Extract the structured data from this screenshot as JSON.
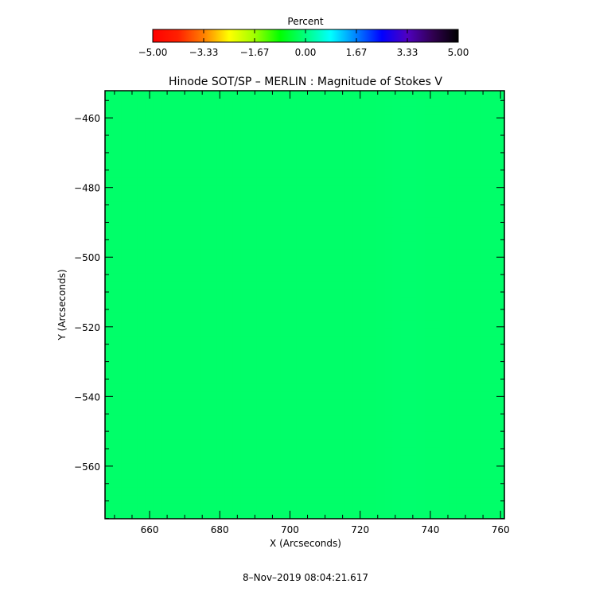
{
  "chart_data": {
    "type": "heatmap",
    "title": "Hinode SOT/SP – MERLIN : Magnitude of Stokes V",
    "xlabel": "X (Arcseconds)",
    "ylabel": "Y (Arcseconds)",
    "xlim": [
      647.3,
      761.1
    ],
    "ylim": [
      -575.1,
      -452.2
    ],
    "xticks": [
      "660",
      "680",
      "700",
      "720",
      "740",
      "760"
    ],
    "xtick_values": [
      660,
      680,
      700,
      720,
      740,
      760
    ],
    "yticks": [
      "−460",
      "−480",
      "−500",
      "−520",
      "−540",
      "−560"
    ],
    "ytick_values": [
      -460,
      -480,
      -500,
      -520,
      -540,
      -560
    ],
    "colorbar": {
      "label": "Percent",
      "range": [
        -5,
        5
      ],
      "ticks": [
        "−5.00",
        "−3.33",
        "−1.67",
        "0.00",
        "1.67",
        "3.33",
        "5.00"
      ],
      "colormap": [
        [
          -5,
          "#ff0000"
        ],
        [
          -4.17,
          "#ff2000"
        ],
        [
          -3.33,
          "#ff8000"
        ],
        [
          -2.5,
          "#ffff00"
        ],
        [
          -1.67,
          "#a0ff00"
        ],
        [
          -0.83,
          "#00ff00"
        ],
        [
          0,
          "#00ff80"
        ],
        [
          0.83,
          "#00ffff"
        ],
        [
          1.67,
          "#0080ff"
        ],
        [
          2.5,
          "#0000ff"
        ],
        [
          3.33,
          "#5000c0"
        ],
        [
          4.17,
          "#300050"
        ],
        [
          5,
          "#000000"
        ]
      ]
    },
    "grid_x": [
      650,
      662,
      674,
      686,
      698,
      710,
      722,
      734,
      746,
      758
    ],
    "grid_y": [
      -455,
      -466,
      -477,
      -488,
      -499,
      -510,
      -521,
      -532,
      -543,
      -554,
      -565,
      -574
    ],
    "values": [
      [
        -0.15,
        -0.15,
        -0.15,
        -0.15,
        -0.15,
        -0.15,
        -0.15,
        -0.12,
        -0.15,
        -0.15
      ],
      [
        -0.15,
        -0.18,
        -0.15,
        -0.15,
        -0.15,
        -0.2,
        -0.15,
        -0.15,
        -0.15,
        -0.15
      ],
      [
        -0.18,
        -0.15,
        -0.15,
        -0.12,
        -0.15,
        -0.15,
        -0.15,
        -0.15,
        -0.15,
        -0.15
      ],
      [
        -0.15,
        -0.3,
        -0.15,
        -0.1,
        -0.15,
        -0.15,
        -0.15,
        -0.15,
        -0.18,
        -0.15
      ],
      [
        -0.15,
        -0.15,
        -0.15,
        -0.05,
        -0.15,
        -0.15,
        -0.15,
        -0.15,
        -0.15,
        -0.2
      ],
      [
        -0.15,
        -0.15,
        -0.1,
        0.1,
        -0.1,
        -0.3,
        -0.15,
        -0.15,
        -0.25,
        -0.15
      ],
      [
        -0.15,
        -0.15,
        -0.1,
        0.2,
        -0.35,
        -0.3,
        -0.15,
        -0.15,
        -0.15,
        -0.15
      ],
      [
        -0.15,
        -0.15,
        -0.1,
        0.0,
        -0.4,
        -0.2,
        -0.15,
        -0.2,
        -0.15,
        -0.15
      ],
      [
        -0.18,
        -0.15,
        -0.15,
        -0.15,
        -0.2,
        -0.35,
        -0.15,
        -0.2,
        -0.15,
        -0.15
      ],
      [
        -0.12,
        -0.15,
        -0.15,
        -0.2,
        -0.15,
        -0.15,
        -0.15,
        -0.15,
        -0.15,
        -0.15
      ],
      [
        -0.05,
        -0.18,
        -0.15,
        -0.15,
        -0.15,
        -0.25,
        -0.15,
        -0.15,
        -0.18,
        -0.15
      ],
      [
        -0.15,
        -0.15,
        -0.15,
        -0.15,
        -0.15,
        -0.15,
        -0.15,
        -0.15,
        -0.15,
        -0.15
      ]
    ]
  },
  "footer": {
    "timestamp": "8–Nov–2019 08:04:21.617"
  }
}
